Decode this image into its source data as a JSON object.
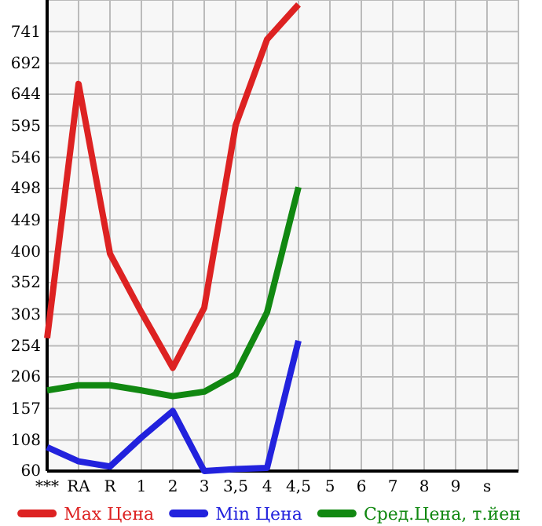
{
  "chart_data": {
    "type": "line",
    "categories": [
      "***",
      "RA",
      "R",
      "1",
      "2",
      "3",
      "3,5",
      "4",
      "4,5",
      "5",
      "6",
      "7",
      "8",
      "9",
      "s",
      null
    ],
    "series": [
      {
        "name": "Max Цена",
        "color": "#dd2222",
        "values": [
          266,
          660,
          397,
          306,
          220,
          313,
          596,
          729,
          783,
          null,
          null,
          null,
          null,
          null,
          null,
          null
        ]
      },
      {
        "name": "Min Цена",
        "color": "#2222dd",
        "values": [
          97,
          75,
          67,
          112,
          153,
          60,
          63,
          65,
          262,
          null,
          null,
          null,
          null,
          null,
          null,
          null
        ]
      },
      {
        "name": "Сред.Цена, т.йен",
        "color": "#118811",
        "values": [
          185,
          193,
          193,
          185,
          176,
          183,
          210,
          306,
          500,
          null,
          null,
          null,
          null,
          null,
          null,
          null
        ]
      }
    ],
    "ylim": [
      60,
      790
    ],
    "yticks": [
      60,
      108,
      157,
      206,
      254,
      303,
      352,
      400,
      449,
      498,
      546,
      595,
      644,
      692,
      741
    ],
    "grid": true,
    "legend": "bottom",
    "marker": "none",
    "line_style": "solid"
  }
}
